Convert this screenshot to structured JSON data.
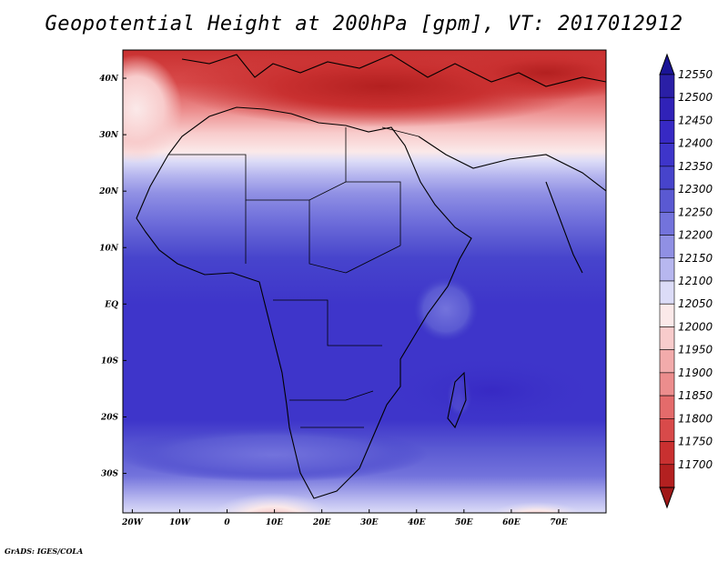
{
  "title": "Geopotential Height at 200hPa [gpm], VT: 2017012912",
  "footer": "GrADS: IGES/COLA",
  "map": {
    "lon_range": [
      -22,
      80
    ],
    "lat_range": [
      -37,
      45
    ],
    "x_ticks": [
      "20W",
      "10W",
      "0",
      "10E",
      "20E",
      "30E",
      "40E",
      "50E",
      "60E",
      "70E"
    ],
    "y_ticks": [
      "40N",
      "30N",
      "20N",
      "10N",
      "EQ",
      "10S",
      "20S",
      "30S"
    ]
  },
  "colorbar": {
    "levels": [
      "12550",
      "12500",
      "12450",
      "12400",
      "12350",
      "12300",
      "12250",
      "12200",
      "12150",
      "12100",
      "12050",
      "12000",
      "11950",
      "11900",
      "11850",
      "11800",
      "11750",
      "11700"
    ],
    "colors": [
      "#2a1fa6",
      "#3022b8",
      "#3729c4",
      "#3e35ca",
      "#4744cc",
      "#5a59d2",
      "#7373dc",
      "#9090e4",
      "#b7b7ef",
      "#dcdcf7",
      "#fbe9e9",
      "#f8cccc",
      "#f2abab",
      "#ec8d8d",
      "#e46b6b",
      "#d84a4a",
      "#c93030",
      "#b32020"
    ]
  }
}
